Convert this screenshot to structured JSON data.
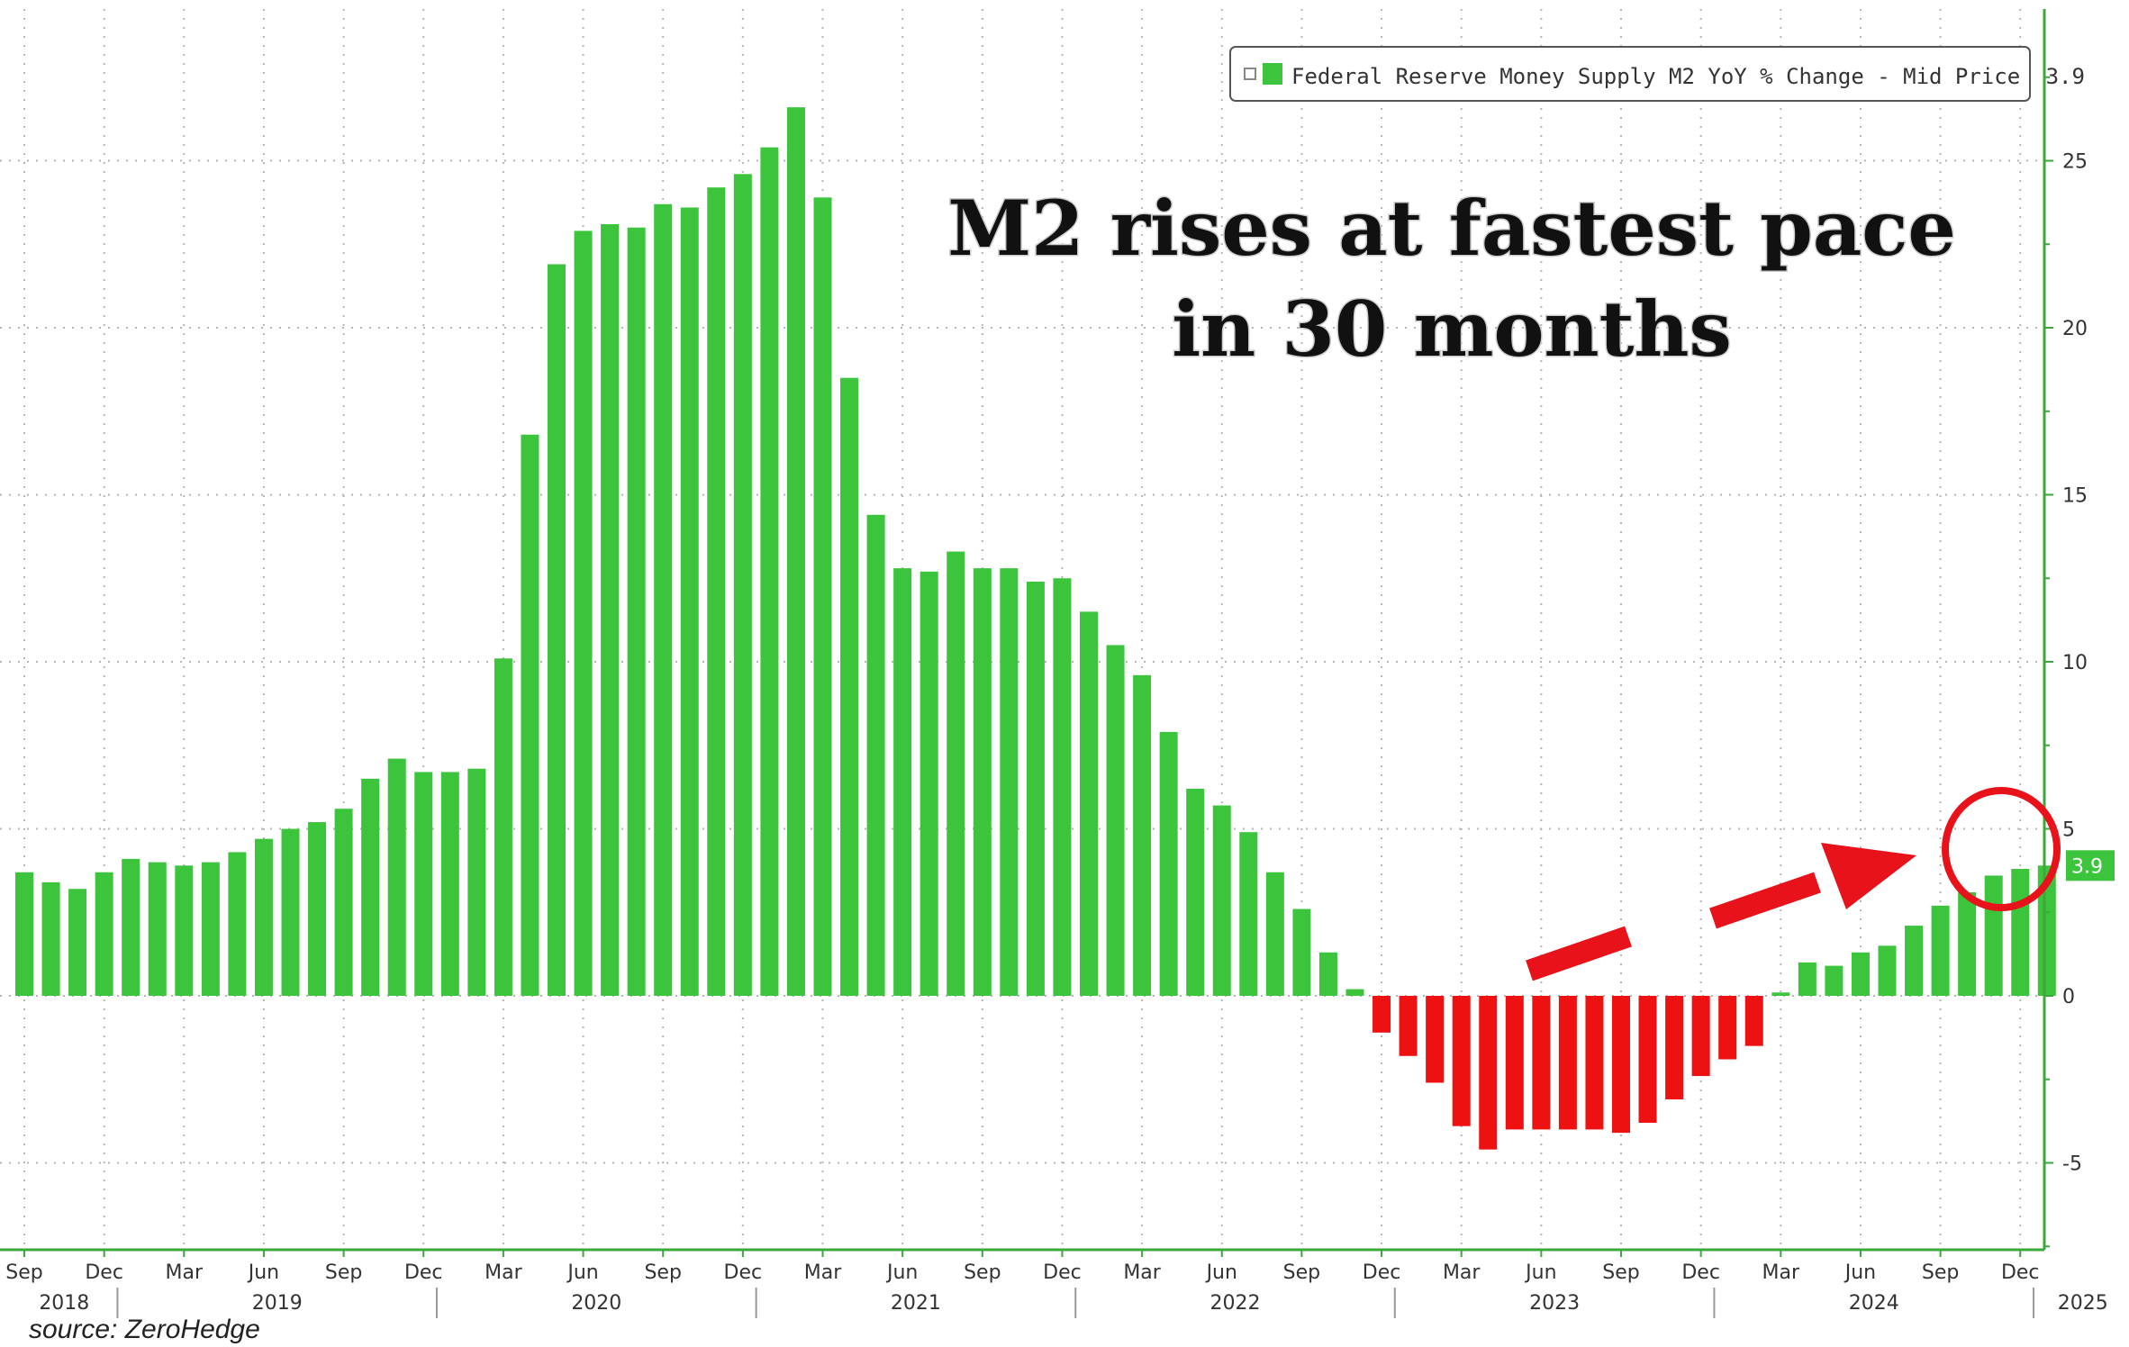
{
  "chart_data": {
    "type": "bar",
    "legend": {
      "label": "Federal Reserve Money Supply M2 YoY % Change - Mid Price",
      "last_value": "3.9"
    },
    "annotation": {
      "line1": "M2 rises at fastest pace",
      "line2": "in 30 months"
    },
    "source": "source: ZeroHedge",
    "last_value_label": "3.9",
    "ylim": [
      -7.5,
      29
    ],
    "yticks": [
      -5,
      0,
      5,
      10,
      15,
      20,
      25
    ],
    "ytick_labels": [
      "-5",
      "0",
      "5",
      "10",
      "15",
      "20",
      "25"
    ],
    "month_tick_labels": [
      "Sep",
      "Dec",
      "Mar",
      "Jun",
      "Sep",
      "Dec",
      "Mar",
      "Jun",
      "Sep",
      "Dec",
      "Mar",
      "Jun",
      "Sep",
      "Dec",
      "Mar",
      "Jun",
      "Sep",
      "Dec",
      "Mar",
      "Jun",
      "Sep",
      "Dec",
      "Mar",
      "Jun",
      "Sep",
      "Dec"
    ],
    "year_labels": [
      "2018",
      "2019",
      "2020",
      "2021",
      "2022",
      "2023",
      "2024",
      "2025"
    ],
    "start_month": "2018-09",
    "colors": {
      "positive": "#3cc43c",
      "negative": "#ee1111",
      "accent": "#e8121a",
      "axis": "#3aa83a"
    },
    "values": [
      3.7,
      3.4,
      3.2,
      3.7,
      4.1,
      4.0,
      3.9,
      4.0,
      4.3,
      4.7,
      5.0,
      5.2,
      5.6,
      6.5,
      7.1,
      6.7,
      6.7,
      6.8,
      10.1,
      16.8,
      21.9,
      22.9,
      23.1,
      23.0,
      23.7,
      23.6,
      24.2,
      24.6,
      25.4,
      26.6,
      23.9,
      18.5,
      14.4,
      12.8,
      12.7,
      13.3,
      12.8,
      12.8,
      12.4,
      12.5,
      11.5,
      10.5,
      9.6,
      7.9,
      6.2,
      5.7,
      4.9,
      3.7,
      2.6,
      1.3,
      0.2,
      -1.1,
      -1.8,
      -2.6,
      -3.9,
      -4.6,
      -4.0,
      -4.0,
      -4.0,
      -4.0,
      -4.1,
      -3.8,
      -3.1,
      -2.4,
      -1.9,
      -1.5,
      0.1,
      1.0,
      0.9,
      1.3,
      1.5,
      2.1,
      2.7,
      3.1,
      3.6,
      3.8,
      3.9
    ]
  }
}
